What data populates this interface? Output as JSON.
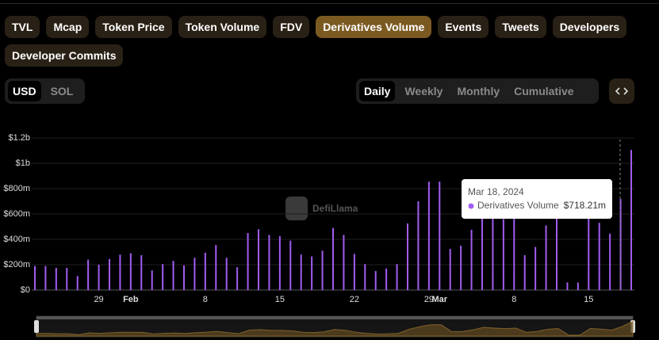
{
  "tabs": [
    "TVL",
    "Mcap",
    "Token Price",
    "Token Volume",
    "FDV",
    "Derivatives Volume",
    "Events",
    "Tweets",
    "Developers",
    "Developer Commits"
  ],
  "active_tab": 5,
  "currencies": [
    "USD",
    "SOL"
  ],
  "active_currency": 0,
  "periods": [
    "Daily",
    "Weekly",
    "Monthly",
    "Cumulative"
  ],
  "active_period": 0,
  "watermark": "DefiLlama",
  "chart_data": {
    "type": "bar",
    "categories": [
      null,
      null,
      null,
      null,
      null,
      null,
      "29",
      null,
      null,
      "Feb",
      null,
      null,
      null,
      null,
      null,
      null,
      "8",
      null,
      null,
      null,
      null,
      null,
      null,
      "15",
      null,
      null,
      null,
      null,
      null,
      null,
      "22",
      null,
      null,
      null,
      null,
      null,
      null,
      "29",
      "Mar",
      null,
      null,
      null,
      null,
      null,
      null,
      "8",
      null,
      null,
      null,
      null,
      null,
      null,
      "15",
      null,
      null,
      null,
      null
    ],
    "series": [
      {
        "name": "Derivatives Volume",
        "color": "#a25cf2",
        "values": [
          190000000,
          190000000,
          175000000,
          175000000,
          110000000,
          240000000,
          200000000,
          245000000,
          280000000,
          290000000,
          275000000,
          155000000,
          205000000,
          230000000,
          195000000,
          255000000,
          295000000,
          355000000,
          255000000,
          180000000,
          450000000,
          480000000,
          435000000,
          425000000,
          390000000,
          280000000,
          265000000,
          310000000,
          490000000,
          435000000,
          285000000,
          205000000,
          150000000,
          170000000,
          205000000,
          525000000,
          700000000,
          855000000,
          855000000,
          325000000,
          350000000,
          475000000,
          660000000,
          600000000,
          560000000,
          600000000,
          275000000,
          340000000,
          510000000,
          570000000,
          60000000,
          60000000,
          570000000,
          530000000,
          445000000,
          718210000,
          1105000000
        ]
      }
    ],
    "ylim": [
      0,
      1200000000
    ],
    "yticks": [
      {
        "value": 0,
        "label": "$0"
      },
      {
        "value": 200000000,
        "label": "$200m"
      },
      {
        "value": 400000000,
        "label": "$400m"
      },
      {
        "value": 600000000,
        "label": "$600m"
      },
      {
        "value": 800000000,
        "label": "$800m"
      },
      {
        "value": 1000000000,
        "label": "$1b"
      },
      {
        "value": 1200000000,
        "label": "$1.2b"
      }
    ],
    "grid": true,
    "tooltip": {
      "date": "Mar 18, 2024",
      "value_label": "$718.21m"
    }
  }
}
